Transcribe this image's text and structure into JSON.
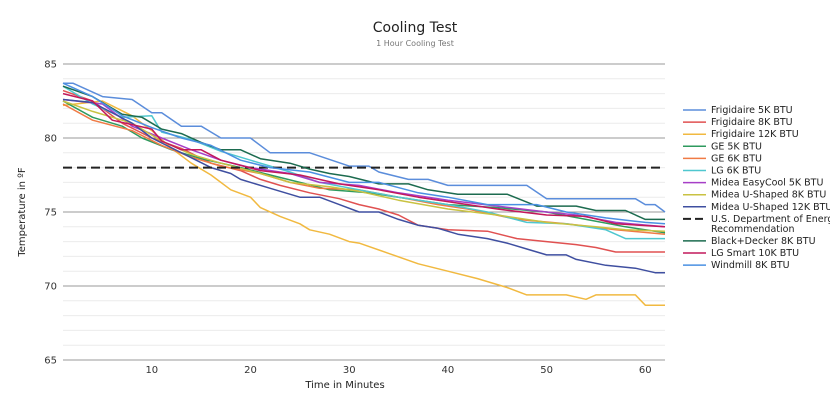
{
  "chart_data": {
    "type": "line",
    "title": "Cooling Test",
    "subtitle": "1 Hour Cooling Test",
    "xlabel": "Time in Minutes",
    "ylabel": "Temperature in ºF",
    "xlim": [
      1,
      62
    ],
    "ylim": [
      65,
      85
    ],
    "xticks": [
      10,
      20,
      30,
      40,
      50,
      60
    ],
    "yticks": [
      65,
      70,
      75,
      80,
      85
    ],
    "grid": {
      "major": true,
      "minor": true
    },
    "legend_position": "right",
    "series": [
      {
        "name": "Frigidaire 5K BTU",
        "color": "#5b8ddb",
        "x": [
          1,
          2,
          5,
          8,
          10,
          11,
          13,
          15,
          17,
          20,
          22,
          26,
          30,
          32,
          33,
          36,
          38,
          40,
          48,
          50,
          59,
          60,
          61,
          62
        ],
        "y": [
          83.7,
          83.7,
          82.8,
          82.6,
          81.7,
          81.7,
          80.8,
          80.8,
          80,
          80,
          79,
          79,
          78.1,
          78.1,
          77.7,
          77.2,
          77.2,
          76.8,
          76.8,
          75.9,
          75.9,
          75.5,
          75.5,
          75
        ]
      },
      {
        "name": "Frigidaire 8K BTU",
        "color": "#e05151",
        "x": [
          1,
          4,
          7,
          10,
          13,
          16,
          19,
          21,
          23,
          26,
          29,
          31,
          33,
          35,
          37,
          40,
          44,
          47,
          50,
          53,
          55,
          57,
          62
        ],
        "y": [
          83.2,
          82.5,
          81,
          80,
          79.3,
          78.3,
          77.8,
          77.2,
          76.8,
          76.3,
          75.9,
          75.5,
          75.2,
          74.8,
          74.1,
          73.8,
          73.7,
          73.2,
          73,
          72.8,
          72.6,
          72.3,
          72.3
        ]
      },
      {
        "name": "Frigidaire 12K BTU",
        "color": "#f1b940",
        "x": [
          1,
          5,
          8,
          10,
          12,
          14,
          16,
          18,
          20,
          21,
          23,
          25,
          26,
          28,
          30,
          31,
          34,
          37,
          40,
          43,
          46,
          48,
          52,
          54,
          55,
          59,
          60,
          62
        ],
        "y": [
          82.2,
          82.5,
          81.5,
          80.5,
          79.3,
          78.3,
          77.5,
          76.5,
          76,
          75.3,
          74.7,
          74.2,
          73.8,
          73.5,
          73,
          72.9,
          72.2,
          71.5,
          71,
          70.5,
          69.9,
          69.4,
          69.4,
          69.1,
          69.4,
          69.4,
          68.7,
          68.7
        ]
      },
      {
        "name": "GE 5K BTU",
        "color": "#2e9a5e",
        "x": [
          1,
          4,
          7,
          9,
          12,
          15,
          19,
          22,
          25,
          28,
          32,
          36,
          40,
          45,
          50,
          54,
          58,
          62
        ],
        "y": [
          82.5,
          81.4,
          80.8,
          80,
          79.2,
          78.6,
          78,
          77.5,
          77,
          76.5,
          76.3,
          75.9,
          75.5,
          75.3,
          75,
          74.5,
          74,
          73.6
        ]
      },
      {
        "name": "GE 6K BTU",
        "color": "#f07b45",
        "x": [
          1,
          4,
          8,
          11,
          14,
          17,
          21,
          24,
          27,
          31,
          35,
          39,
          42,
          47,
          52,
          57,
          62
        ],
        "y": [
          82.3,
          81.2,
          80.5,
          79.5,
          78.7,
          78.1,
          77.6,
          77,
          76.6,
          76.5,
          76,
          75.5,
          75.2,
          74.5,
          74.2,
          73.8,
          73.5
        ]
      },
      {
        "name": "LG 6K BTU",
        "color": "#4fc7cf",
        "x": [
          1,
          4,
          7,
          10,
          11,
          14,
          17,
          20,
          24,
          27,
          31,
          35,
          40,
          44,
          48,
          52,
          56,
          58,
          62
        ],
        "y": [
          83.5,
          82.3,
          81.4,
          81.5,
          80.4,
          79.9,
          79.1,
          78.5,
          77.7,
          77,
          76.5,
          76,
          75.5,
          75,
          74.3,
          74.2,
          73.8,
          73.2,
          73.2
        ]
      },
      {
        "name": "Midea EasyCool 5K BTU",
        "color": "#a63fc7",
        "x": [
          1,
          5,
          8,
          11,
          14,
          17,
          20,
          24,
          27,
          31,
          35,
          40,
          45,
          50,
          53,
          57,
          62
        ],
        "y": [
          82.6,
          82.3,
          80.8,
          80,
          79.2,
          78.5,
          78,
          77.6,
          77,
          76.8,
          76.3,
          75.8,
          75.4,
          75,
          74.8,
          74.3,
          74
        ]
      },
      {
        "name": "Midea U-Shaped 8K BTU",
        "color": "#c9c242",
        "x": [
          1,
          4,
          8,
          11,
          14,
          17,
          21,
          24,
          28,
          31,
          35,
          40,
          45,
          50,
          55,
          58,
          62
        ],
        "y": [
          82.5,
          81.8,
          81,
          79.8,
          78.9,
          78.3,
          77.6,
          77,
          76.7,
          76.4,
          75.8,
          75.2,
          74.8,
          74.3,
          74,
          73.8,
          73.7
        ]
      },
      {
        "name": "Midea U-Shaped 12K BTU",
        "color": "#3f4fa0",
        "x": [
          1,
          4,
          8,
          10,
          13,
          16,
          18,
          19,
          22,
          25,
          27,
          29,
          31,
          33,
          35,
          37,
          39,
          41,
          44,
          46,
          48,
          50,
          52,
          53,
          56,
          59,
          61,
          62
        ],
        "y": [
          82.6,
          82.4,
          81,
          80,
          79,
          78,
          77.6,
          77.2,
          76.6,
          76,
          76,
          75.5,
          75,
          75,
          74.5,
          74.1,
          73.9,
          73.5,
          73.2,
          72.9,
          72.5,
          72.1,
          72.1,
          71.8,
          71.4,
          71.2,
          70.9,
          70.9
        ]
      },
      {
        "name": "U.S. Department of Energy Recommendation",
        "color": "#222222",
        "dashed": true,
        "x": [
          1,
          62
        ],
        "y": [
          78,
          78
        ]
      },
      {
        "name": "Black+Decker 8K BTU",
        "color": "#1c6b4f",
        "x": [
          1,
          4,
          7,
          9,
          11,
          13,
          15,
          17,
          19,
          21,
          24,
          26,
          28,
          30,
          33,
          36,
          38,
          41,
          46,
          49,
          53,
          55,
          58,
          60,
          62
        ],
        "y": [
          83.5,
          82.8,
          81.6,
          81.4,
          80.6,
          80.3,
          79.7,
          79.2,
          79.2,
          78.6,
          78.3,
          77.9,
          77.6,
          77.4,
          76.9,
          76.9,
          76.5,
          76.2,
          76.2,
          75.4,
          75.4,
          75.1,
          75.1,
          74.5,
          74.5
        ]
      },
      {
        "name": "LG Smart 10K BTU",
        "color": "#c2185b",
        "x": [
          1,
          4,
          6,
          10,
          11,
          13,
          15,
          17,
          21,
          25,
          29,
          33,
          37,
          41,
          45,
          50,
          54,
          57,
          62
        ],
        "y": [
          83,
          82.5,
          81.2,
          80.6,
          79.8,
          79.2,
          79.2,
          78.5,
          77.8,
          77.5,
          76.9,
          76.5,
          76,
          75.6,
          75.2,
          74.8,
          74.7,
          74.2,
          74
        ]
      },
      {
        "name": "Windmill 8K BTU",
        "color": "#4a90e2",
        "x": [
          1,
          4,
          7,
          10,
          13,
          16,
          19,
          22,
          26,
          30,
          33,
          37,
          40,
          44,
          49,
          52,
          56,
          60,
          62
        ],
        "y": [
          83.7,
          82.8,
          81.5,
          80.7,
          80,
          79.5,
          78.5,
          78,
          77.7,
          77,
          77,
          76.3,
          76,
          75.5,
          75.5,
          75,
          74.6,
          74.3,
          74.2
        ]
      }
    ]
  }
}
